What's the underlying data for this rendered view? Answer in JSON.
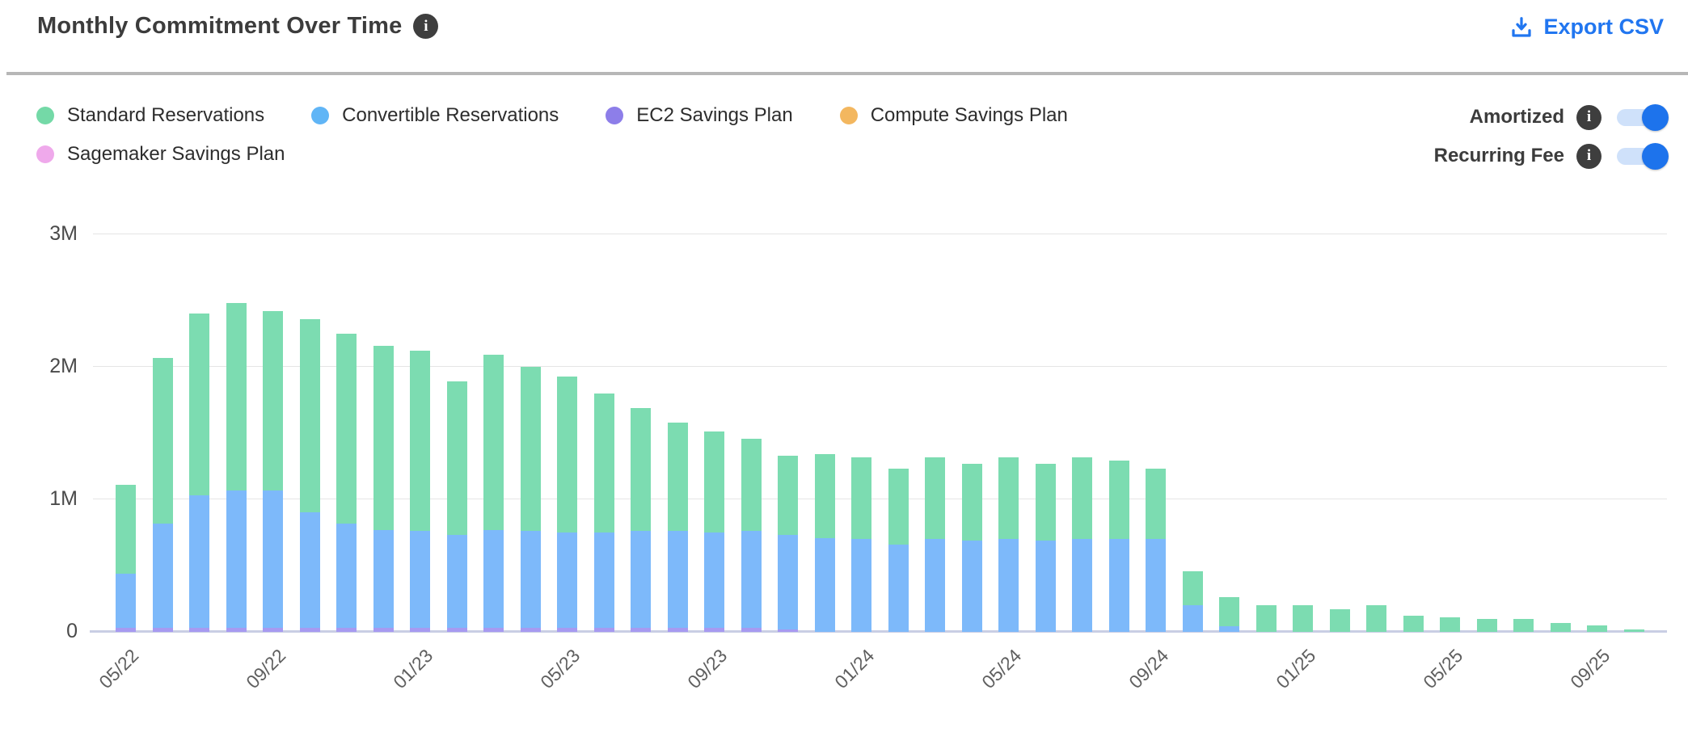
{
  "header": {
    "title": "Monthly Commitment Over Time",
    "title_info_icon": "info-icon",
    "export_label": "Export CSV",
    "export_icon": "download-icon"
  },
  "legend": {
    "items": [
      {
        "label": "Standard Reservations",
        "color": "#74d9a7"
      },
      {
        "label": "Convertible Reservations",
        "color": "#60b5f6"
      },
      {
        "label": "EC2 Savings Plan",
        "color": "#8d7ee9"
      },
      {
        "label": "Compute Savings Plan",
        "color": "#f3b75f"
      },
      {
        "label": "Sagemaker Savings Plan",
        "color": "#efa9eb"
      }
    ]
  },
  "toggles": [
    {
      "label": "Amortized",
      "info_icon": "info-icon",
      "state": "on"
    },
    {
      "label": "Recurring Fee",
      "info_icon": "info-icon",
      "state": "on"
    }
  ],
  "colors": {
    "accent_blue": "#2176f0",
    "toggle_track": "#cfe1fa",
    "toggle_knob": "#1d73ec",
    "info_icon_bg": "#3e3e3e",
    "gridline": "#e5e5e5",
    "axis_line": "#c9cee4"
  },
  "chart_data": {
    "type": "bar",
    "stacked": true,
    "unit": "M",
    "ylim": [
      0,
      3
    ],
    "grid": true,
    "legend_position": "top-left",
    "yticks": [
      {
        "value": 0,
        "label": "0"
      },
      {
        "value": 1,
        "label": "1M"
      },
      {
        "value": 2,
        "label": "2M"
      },
      {
        "value": 3,
        "label": "3M"
      }
    ],
    "categories": [
      "05/22",
      "06/22",
      "07/22",
      "08/22",
      "09/22",
      "10/22",
      "11/22",
      "12/22",
      "01/23",
      "02/23",
      "03/23",
      "04/23",
      "05/23",
      "06/23",
      "07/23",
      "08/23",
      "09/23",
      "10/23",
      "11/23",
      "12/23",
      "01/24",
      "02/24",
      "03/24",
      "04/24",
      "05/24",
      "06/24",
      "07/24",
      "08/24",
      "09/24",
      "10/24",
      "11/24",
      "12/24",
      "01/25",
      "02/25",
      "03/25",
      "04/25",
      "05/25",
      "06/25",
      "07/25",
      "08/25",
      "09/25",
      "10/25"
    ],
    "x_tick_labels": [
      "05/22",
      "09/22",
      "01/23",
      "05/23",
      "09/23",
      "01/24",
      "05/24",
      "09/24",
      "01/25",
      "05/25",
      "09/25"
    ],
    "x_tick_every": 4,
    "series": [
      {
        "name": "EC2 Savings Plan",
        "color": "#a79af1",
        "values": [
          0.03,
          0.03,
          0.03,
          0.03,
          0.03,
          0.03,
          0.03,
          0.03,
          0.03,
          0.03,
          0.03,
          0.03,
          0.03,
          0.03,
          0.03,
          0.03,
          0.03,
          0.03,
          0.02,
          0,
          0,
          0,
          0,
          0,
          0,
          0,
          0,
          0,
          0,
          0,
          0,
          0,
          0,
          0,
          0,
          0,
          0,
          0,
          0,
          0,
          0,
          0
        ]
      },
      {
        "name": "Convertible Reservations",
        "color": "#7db9fa",
        "values": [
          0.41,
          0.79,
          1.0,
          1.04,
          1.04,
          0.87,
          0.79,
          0.74,
          0.73,
          0.7,
          0.74,
          0.73,
          0.72,
          0.72,
          0.73,
          0.73,
          0.72,
          0.73,
          0.71,
          0.71,
          0.7,
          0.66,
          0.7,
          0.69,
          0.7,
          0.69,
          0.7,
          0.7,
          0.7,
          0.2,
          0.04,
          0,
          0,
          0,
          0,
          0,
          0,
          0,
          0,
          0,
          0,
          0
        ]
      },
      {
        "name": "Standard Reservations",
        "color": "#7cdcb1",
        "values": [
          0.67,
          1.25,
          1.37,
          1.41,
          1.35,
          1.46,
          1.43,
          1.39,
          1.36,
          1.16,
          1.32,
          1.24,
          1.18,
          1.05,
          0.93,
          0.82,
          0.76,
          0.7,
          0.6,
          0.63,
          0.62,
          0.57,
          0.62,
          0.58,
          0.62,
          0.58,
          0.62,
          0.59,
          0.53,
          0.26,
          0.22,
          0.2,
          0.2,
          0.17,
          0.2,
          0.12,
          0.11,
          0.1,
          0.1,
          0.07,
          0.05,
          0.02
        ]
      },
      {
        "name": "Compute Savings Plan",
        "color": "#f3b75f",
        "values": [
          0,
          0,
          0,
          0,
          0,
          0,
          0,
          0,
          0,
          0,
          0,
          0,
          0,
          0,
          0,
          0,
          0,
          0,
          0,
          0,
          0,
          0,
          0,
          0,
          0,
          0,
          0,
          0,
          0,
          0,
          0,
          0,
          0,
          0,
          0,
          0,
          0,
          0,
          0,
          0,
          0,
          0
        ]
      },
      {
        "name": "Sagemaker Savings Plan",
        "color": "#efa9eb",
        "values": [
          0,
          0,
          0,
          0,
          0,
          0,
          0,
          0,
          0,
          0,
          0,
          0,
          0,
          0,
          0,
          0,
          0,
          0,
          0,
          0,
          0,
          0,
          0,
          0,
          0,
          0,
          0,
          0,
          0,
          0,
          0,
          0,
          0,
          0,
          0,
          0,
          0,
          0,
          0,
          0,
          0,
          0
        ]
      }
    ]
  }
}
